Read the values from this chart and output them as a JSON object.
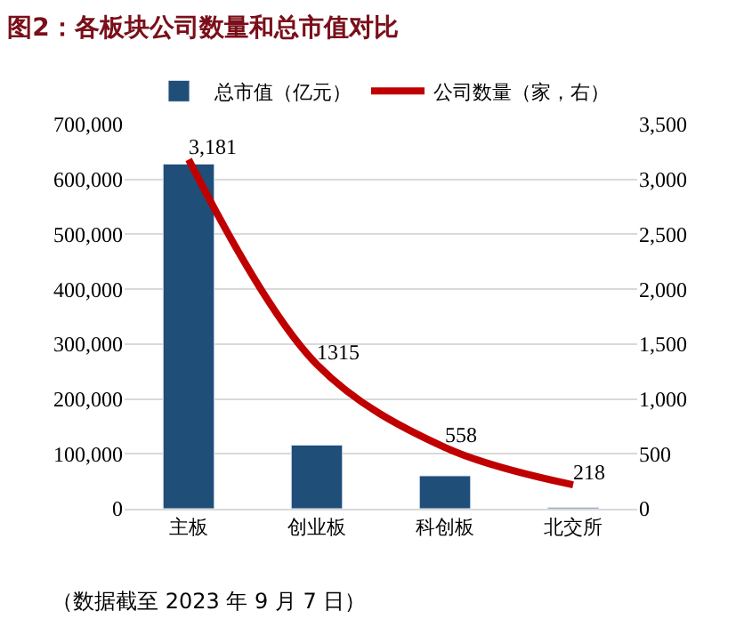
{
  "chart_data": {
    "type": "bar",
    "title": "图2：各板块公司数量和总市值对比",
    "categories": [
      "主板",
      "创业板",
      "科创板",
      "北交所"
    ],
    "series": [
      {
        "name": "总市值（亿元）",
        "color": "#1f4e79",
        "values": [
          628000,
          116000,
          60000,
          2000
        ]
      },
      {
        "name": "公司数量（家，右）",
        "type": "line",
        "axis": "y2",
        "color": "#c00000",
        "values": [
          3181,
          1315,
          558,
          218
        ],
        "value_labels": [
          "3,181",
          "1315",
          "558",
          "218"
        ]
      }
    ],
    "ylim": [
      0,
      700000
    ],
    "yticks": [
      {
        "value": 0,
        "label": "0"
      },
      {
        "value": 100000,
        "label": "100,000"
      },
      {
        "value": 200000,
        "label": "200,000"
      },
      {
        "value": 300000,
        "label": "300,000"
      },
      {
        "value": 400000,
        "label": "400,000"
      },
      {
        "value": 500000,
        "label": "500,000"
      },
      {
        "value": 600000,
        "label": "600,000"
      },
      {
        "value": 700000,
        "label": "700,000"
      }
    ],
    "y2lim": [
      0,
      3500
    ],
    "y2ticks": [
      {
        "value": 0,
        "label": "0"
      },
      {
        "value": 500,
        "label": "500"
      },
      {
        "value": 1000,
        "label": "1,000"
      },
      {
        "value": 1500,
        "label": "1,500"
      },
      {
        "value": 2000,
        "label": "2,000"
      },
      {
        "value": 2500,
        "label": "2,500"
      },
      {
        "value": 3000,
        "label": "3,000"
      },
      {
        "value": 3500,
        "label": "3,500"
      }
    ],
    "grid": "y",
    "legend": "top",
    "marker": "none",
    "line_style": "solid",
    "annotations": [
      "（数据截至 2023 年 9 月 7 日）"
    ]
  }
}
